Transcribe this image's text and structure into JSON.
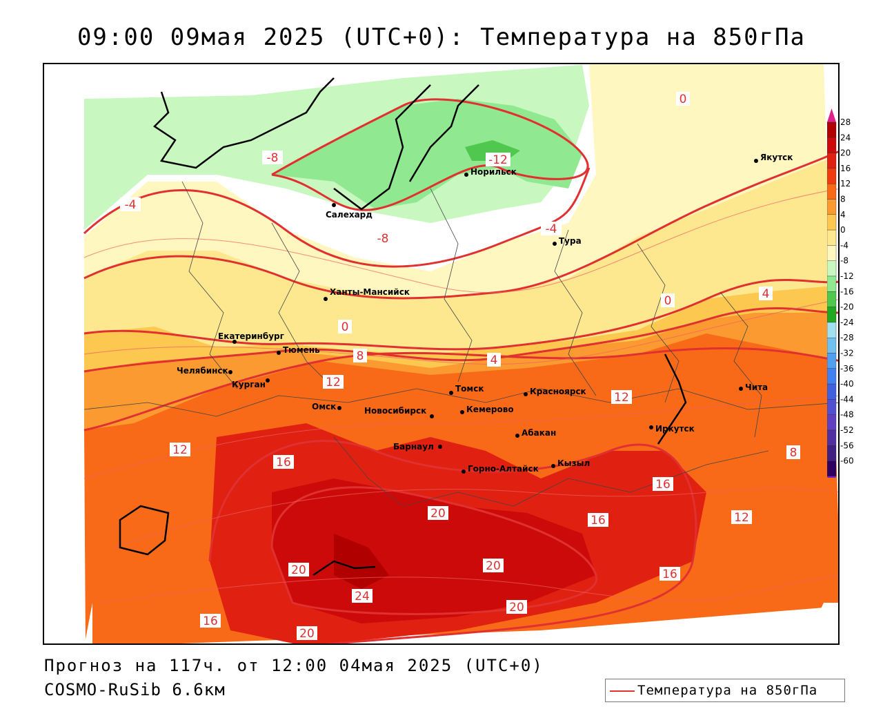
{
  "title": "09:00 09мая 2025 (UTC+0): Температура на 850гПа",
  "forecast_line": "Прогноз на 117ч. от 12:00 04мая 2025 (UTC+0)",
  "model_line": "COSMO-RuSib 6.6км",
  "legend_label": "Температура на 850гПа",
  "colorbar": {
    "ticks": [
      "28",
      "24",
      "20",
      "16",
      "12",
      "8",
      "4",
      "0",
      "-4",
      "-8",
      "-12",
      "-16",
      "-20",
      "-24",
      "-28",
      "-32",
      "-36",
      "-40",
      "-44",
      "-48",
      "-52",
      "-56",
      "-60"
    ],
    "colors": [
      "#b00000",
      "#cc0a0a",
      "#e02010",
      "#f03a10",
      "#f86a18",
      "#fb9a30",
      "#fcc850",
      "#fde890",
      "#fff6c0",
      "#c8f8c0",
      "#90e890",
      "#50c850",
      "#20a820",
      "#a0e0f0",
      "#70c0f0",
      "#50a0f0",
      "#4080f0",
      "#4060e0",
      "#5050d0",
      "#6040c0",
      "#5030a0",
      "#402080",
      "#300060"
    ],
    "top_arrow_color": "#e0208a",
    "bottom_arrow_color": "#7a20c0"
  },
  "cities": [
    {
      "name": "Якутск"
    },
    {
      "name": "Норильск"
    },
    {
      "name": "Салехард"
    },
    {
      "name": "Тура"
    },
    {
      "name": "Ханты-Мансийск"
    },
    {
      "name": "Екатеринбург"
    },
    {
      "name": "Тюмень"
    },
    {
      "name": "Челябинск"
    },
    {
      "name": "Курган"
    },
    {
      "name": "Омск"
    },
    {
      "name": "Новосибирск"
    },
    {
      "name": "Томск"
    },
    {
      "name": "Кемерово"
    },
    {
      "name": "Красноярск"
    },
    {
      "name": "Барнаул"
    },
    {
      "name": "Абакан"
    },
    {
      "name": "Горно-Алтайск"
    },
    {
      "name": "Кызыл"
    },
    {
      "name": "Иркутск"
    },
    {
      "name": "Чита"
    }
  ],
  "isotherm_labels": {
    "z0": "0",
    "m4": "-4",
    "m8": "-8",
    "m12": "-12",
    "p4": "4",
    "p8": "8",
    "p12": "12",
    "p16": "16",
    "p20": "20",
    "p24": "24"
  }
}
